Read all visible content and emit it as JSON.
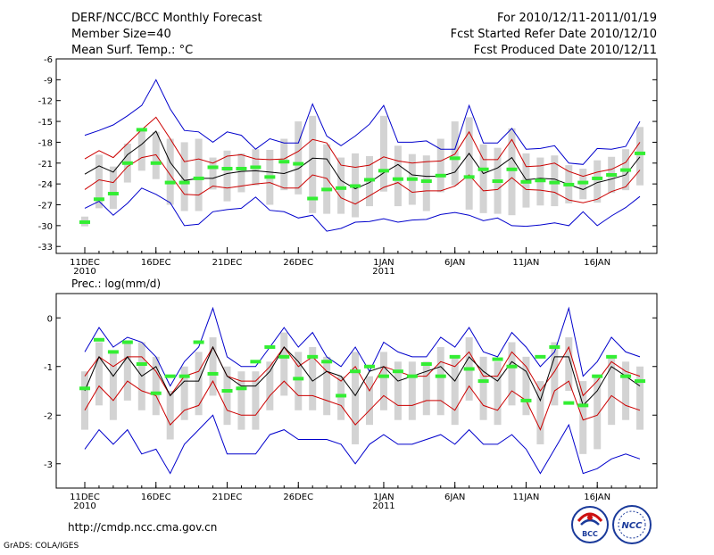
{
  "header": {
    "title": "DERF/NCC/BCC Monthly Forecast",
    "member_size": "Member Size=40",
    "variable": "Mean Surf. Temp.: °C",
    "period": "For 2010/12/11-2011/01/19",
    "started": "Fcst Started Refer Date 2010/12/10",
    "produced": "Fcst Produced Date 2010/12/11"
  },
  "footer": {
    "url": "http://cmdp.ncc.cma.gov.cn",
    "grads": "GrADS: COLA/IGES",
    "logo_bcc": "BCC",
    "logo_ncc": "NCC"
  },
  "colors": {
    "ensemble_mean": "#000000",
    "spread_inner": "#cc0000",
    "spread_outer": "#0000cc",
    "box": "#d3d3d3",
    "green_mark": "#33ee33"
  },
  "chart_data": [
    {
      "type": "line",
      "title": "Mean Surf. Temp.: °C",
      "xlabel": "",
      "ylabel": "°C",
      "x_tick_labels": [
        "11DEC\n2010",
        "16DEC",
        "21DEC",
        "26DEC",
        "1JAN\n2011",
        "6JAN",
        "11JAN",
        "16JAN"
      ],
      "x_tick_days": [
        0,
        5,
        10,
        15,
        21,
        26,
        31,
        36
      ],
      "ylim": [
        -34,
        -6
      ],
      "yticks": [
        -33,
        -30,
        -27,
        -24,
        -21,
        -18,
        -15,
        -12,
        -9,
        -6
      ],
      "days": 40,
      "series": [
        {
          "name": "upper-bound",
          "color": "#0000cc",
          "values": [
            -17,
            -16.3,
            -15.5,
            -14.2,
            -12.7,
            -9,
            -13.2,
            -16.3,
            -16.5,
            -18,
            -16.5,
            -17,
            -19,
            -17.5,
            -18.1,
            -18.1,
            -12.5,
            -17.1,
            -18.5,
            -17.1,
            -15.4,
            -12.7,
            -18,
            -18,
            -17.8,
            -19,
            -19,
            -12.7,
            -18.1,
            -18.1,
            -16,
            -19,
            -18.9,
            -18.5,
            -21,
            -21.2,
            -18.9,
            -19,
            -18.6,
            -15
          ]
        },
        {
          "name": "upper-spread",
          "color": "#cc0000",
          "values": [
            -20.4,
            -19.2,
            -20.2,
            -18.2,
            -16.2,
            -14.4,
            -17.5,
            -20.8,
            -20.4,
            -21,
            -20,
            -19.8,
            -20.4,
            -20.5,
            -20.4,
            -19.3,
            -17.6,
            -18.1,
            -21.3,
            -21.6,
            -21.3,
            -20.1,
            -20.7,
            -21,
            -20.8,
            -20.7,
            -19.7,
            -16.5,
            -20.5,
            -20.5,
            -17.6,
            -21.5,
            -21.4,
            -21,
            -22.2,
            -22.9,
            -22.3,
            -21.9,
            -20.9,
            -18
          ]
        },
        {
          "name": "ensemble-mean",
          "color": "#000000",
          "values": [
            -22.6,
            -21.4,
            -22.3,
            -19.8,
            -18.3,
            -16.4,
            -20.9,
            -23.5,
            -23.2,
            -23.2,
            -22.5,
            -22.2,
            -22.1,
            -22.3,
            -22.5,
            -21.8,
            -20.3,
            -20.4,
            -23.5,
            -24.7,
            -23.8,
            -22.4,
            -21.2,
            -22.7,
            -22.9,
            -22.9,
            -22.3,
            -19.6,
            -22.5,
            -21.7,
            -20.2,
            -23.4,
            -23.2,
            -23.3,
            -24.1,
            -24.8,
            -23.8,
            -23.3,
            -22.7,
            -20.1
          ]
        },
        {
          "name": "lower-spread",
          "color": "#cc0000",
          "values": [
            -24.8,
            -23.4,
            -23.8,
            -21.5,
            -20.2,
            -19.8,
            -22.7,
            -25.5,
            -25.6,
            -24.3,
            -24.6,
            -24.3,
            -24,
            -23.8,
            -24.6,
            -24.6,
            -22.7,
            -23.2,
            -26,
            -26.9,
            -25.7,
            -24.5,
            -23.8,
            -25.2,
            -25,
            -25,
            -24.3,
            -22.7,
            -25,
            -24.8,
            -23.1,
            -24.8,
            -24.9,
            -25.2,
            -26.3,
            -26.7,
            -26.2,
            -25.1,
            -24.4,
            -22
          ]
        },
        {
          "name": "lower-bound",
          "color": "#0000cc",
          "values": [
            -27.5,
            -26.5,
            -28.5,
            -26.8,
            -24.6,
            -25.5,
            -26.7,
            -30,
            -29.8,
            -28,
            -27.7,
            -27.5,
            -25.9,
            -27.8,
            -28,
            -28.9,
            -28.5,
            -30.8,
            -30.4,
            -29.5,
            -29.4,
            -29,
            -29.5,
            -29.2,
            -29.1,
            -28.4,
            -28.1,
            -28.5,
            -29.3,
            -28.9,
            -30,
            -30.1,
            -29.9,
            -29.6,
            -30,
            -28,
            -30,
            -28.6,
            -27.4,
            -25.8
          ]
        },
        {
          "name": "green-markers",
          "color": "#33ee33",
          "values": [
            -29.5,
            -26.2,
            -25.4,
            -21,
            -16.2,
            -21,
            -23.8,
            -23.8,
            -23.2,
            -21.6,
            -21.8,
            -21.8,
            -21.6,
            -23,
            -20.8,
            -21.1,
            -26.1,
            -24.8,
            -24.6,
            -24.3,
            -23.4,
            -22.1,
            -23.3,
            -23.3,
            -23.6,
            -22.8,
            -20.3,
            -23,
            -21.9,
            -23.6,
            -21.9,
            -23.7,
            -23.5,
            -23.8,
            -24.1,
            -23.8,
            -23.2,
            -22.7,
            -22,
            -19.6
          ]
        },
        {
          "name": "box-top",
          "color": "#d3d3d3",
          "values": [
            -28.7,
            -19.8,
            -21.5,
            -18.2,
            -16.3,
            -16.5,
            -17.5,
            -18,
            -17.5,
            -20.2,
            -19.2,
            -19.6,
            -19,
            -19.1,
            -17.5,
            -15,
            -14.2,
            -18.3,
            -20.2,
            -19.6,
            -20,
            -14.2,
            -18.5,
            -19.7,
            -19.9,
            -17.5,
            -15,
            -14.4,
            -18.3,
            -18.8,
            -16,
            -19.6,
            -20.2,
            -19.9,
            -21.3,
            -21.8,
            -20.6,
            -20.1,
            -19,
            -15.8
          ]
        },
        {
          "name": "box-bottom",
          "color": "#d3d3d3",
          "values": [
            -30.1,
            -27.5,
            -27.6,
            -23.8,
            -22.1,
            -23.3,
            -27,
            -27.9,
            -27.9,
            -24.8,
            -26.5,
            -25.2,
            -24.2,
            -27,
            -24.9,
            -25.5,
            -28.2,
            -28.3,
            -28.3,
            -28.8,
            -27.2,
            -25.1,
            -27.2,
            -27,
            -27.9,
            -25.2,
            -24.2,
            -27.7,
            -28.2,
            -28.3,
            -28.5,
            -27.4,
            -27.1,
            -27.2,
            -26.8,
            -26.2,
            -26.7,
            -25.3,
            -24.9,
            -24.2
          ]
        }
      ]
    },
    {
      "type": "line",
      "title": "Prec.: log(mm/d)",
      "xlabel": "",
      "ylabel": "log(mm/d)",
      "x_tick_labels": [
        "11DEC\n2010",
        "16DEC",
        "21DEC",
        "26DEC",
        "1JAN\n2011",
        "6JAN",
        "11JAN",
        "16JAN"
      ],
      "x_tick_days": [
        0,
        5,
        10,
        15,
        21,
        26,
        31,
        36
      ],
      "ylim": [
        -3.5,
        0.5
      ],
      "yticks": [
        -3,
        -2,
        -1,
        0
      ],
      "days": 40,
      "series": [
        {
          "name": "upper-bound",
          "color": "#0000cc",
          "values": [
            -0.7,
            -0.2,
            -0.6,
            -0.4,
            -0.5,
            -0.8,
            -1.4,
            -0.9,
            -0.6,
            0.2,
            -0.8,
            -1.0,
            -1.0,
            -0.6,
            -0.2,
            -0.6,
            -0.3,
            -0.8,
            -1.0,
            -0.6,
            -1.1,
            -0.5,
            -0.7,
            -0.8,
            -0.8,
            -0.4,
            -0.6,
            -0.2,
            -0.7,
            -0.8,
            -0.3,
            -0.6,
            -1.0,
            -0.7,
            0.2,
            -1.2,
            -0.9,
            -0.4,
            -0.7,
            -0.8
          ]
        },
        {
          "name": "upper-spread",
          "color": "#cc0000",
          "values": [
            -1.2,
            -0.8,
            -1.0,
            -0.8,
            -0.8,
            -1.1,
            -1.6,
            -1.2,
            -1.1,
            -0.6,
            -1.2,
            -1.3,
            -1.3,
            -1.0,
            -0.6,
            -1.0,
            -0.8,
            -1.1,
            -1.3,
            -1.0,
            -1.5,
            -1.0,
            -1.1,
            -1.2,
            -1.2,
            -0.9,
            -1.0,
            -0.7,
            -1.2,
            -1.2,
            -0.7,
            -1.0,
            -1.5,
            -1.1,
            -0.6,
            -1.6,
            -1.3,
            -0.9,
            -1.1,
            -1.2
          ]
        },
        {
          "name": "ensemble-mean",
          "color": "#000000",
          "values": [
            -1.5,
            -0.8,
            -1.2,
            -0.8,
            -1.2,
            -1.0,
            -1.6,
            -1.3,
            -1.3,
            -0.6,
            -1.2,
            -1.4,
            -1.4,
            -1.1,
            -0.6,
            -0.9,
            -1.3,
            -1.1,
            -1.2,
            -1.6,
            -1.1,
            -1.0,
            -1.3,
            -1.2,
            -1.1,
            -1.0,
            -1.3,
            -0.8,
            -1.1,
            -1.3,
            -0.9,
            -1.1,
            -1.7,
            -0.8,
            -0.8,
            -1.8,
            -1.5,
            -1.0,
            -1.2,
            -1.4
          ]
        },
        {
          "name": "lower-spread",
          "color": "#cc0000",
          "values": [
            -1.9,
            -1.4,
            -1.7,
            -1.3,
            -1.5,
            -1.6,
            -2.2,
            -1.9,
            -1.8,
            -1.3,
            -1.9,
            -2.0,
            -2.0,
            -1.6,
            -1.3,
            -1.6,
            -1.6,
            -1.7,
            -1.8,
            -2.2,
            -1.9,
            -1.6,
            -1.8,
            -1.8,
            -1.7,
            -1.7,
            -1.9,
            -1.4,
            -1.8,
            -1.9,
            -1.5,
            -1.7,
            -2.3,
            -1.5,
            -1.3,
            -2.1,
            -2.0,
            -1.6,
            -1.8,
            -1.9
          ]
        },
        {
          "name": "lower-bound",
          "color": "#0000cc",
          "values": [
            -2.7,
            -2.3,
            -2.6,
            -2.3,
            -2.8,
            -2.7,
            -3.2,
            -2.6,
            -2.3,
            -2.0,
            -2.8,
            -2.8,
            -2.8,
            -2.4,
            -2.3,
            -2.5,
            -2.5,
            -2.5,
            -2.6,
            -3.0,
            -2.6,
            -2.4,
            -2.6,
            -2.6,
            -2.5,
            -2.4,
            -2.6,
            -2.3,
            -2.6,
            -2.6,
            -2.4,
            -2.7,
            -3.2,
            -2.7,
            -2.2,
            -3.2,
            -3.1,
            -2.9,
            -2.8,
            -2.9
          ]
        },
        {
          "name": "green-markers",
          "color": "#33ee33",
          "values": [
            -1.45,
            -0.45,
            -0.7,
            -0.5,
            -0.95,
            -1.55,
            -1.2,
            -1.2,
            -0.5,
            -1.15,
            -1.5,
            -1.45,
            -0.9,
            -0.6,
            -0.8,
            -1.25,
            -0.8,
            -0.9,
            -1.6,
            -1.1,
            -1.0,
            -1.2,
            -1.1,
            -1.2,
            -0.95,
            -1.2,
            -0.8,
            -1.05,
            -1.3,
            -0.85,
            -1.0,
            -1.7,
            -0.8,
            -0.6,
            -1.75,
            -1.8,
            -1.2,
            -0.8,
            -1.2,
            -1.3
          ]
        },
        {
          "name": "box-top",
          "color": "#d3d3d3",
          "values": [
            -1.1,
            -0.5,
            -0.7,
            -0.5,
            -0.5,
            -0.8,
            -1.5,
            -1.0,
            -0.7,
            -0.4,
            -1.0,
            -1.1,
            -1.1,
            -0.9,
            -0.3,
            -0.7,
            -0.6,
            -0.8,
            -1.2,
            -0.7,
            -1.2,
            -0.7,
            -0.9,
            -0.9,
            -0.9,
            -0.6,
            -0.8,
            -0.4,
            -0.8,
            -0.9,
            -0.5,
            -0.8,
            -1.3,
            -0.5,
            -0.4,
            -1.3,
            -1.2,
            -0.8,
            -0.9,
            -1.0
          ]
        },
        {
          "name": "box-bottom",
          "color": "#d3d3d3",
          "values": [
            -2.3,
            -1.8,
            -2.1,
            -1.7,
            -1.9,
            -2.0,
            -2.5,
            -2.1,
            -2.0,
            -1.6,
            -2.2,
            -2.3,
            -2.3,
            -1.9,
            -1.6,
            -1.9,
            -1.9,
            -2.0,
            -2.1,
            -2.6,
            -2.2,
            -1.9,
            -2.1,
            -2.1,
            -2.0,
            -2.0,
            -2.2,
            -1.7,
            -2.1,
            -2.2,
            -1.8,
            -2.0,
            -2.6,
            -1.8,
            -1.5,
            -2.8,
            -2.7,
            -2.2,
            -2.1,
            -2.3
          ]
        }
      ]
    }
  ]
}
